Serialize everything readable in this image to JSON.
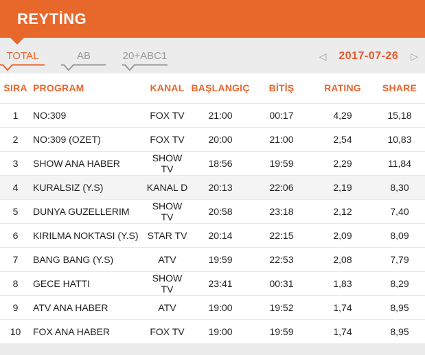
{
  "header": {
    "title": "REYTİNG"
  },
  "tabs": [
    {
      "label": "TOTAL",
      "active": true
    },
    {
      "label": "AB",
      "active": false
    },
    {
      "label": "20+ABC1",
      "active": false
    }
  ],
  "date_nav": {
    "prev_icon": "◁",
    "date": "2017-07-26",
    "next_icon": "▷"
  },
  "colors": {
    "accent_orange": "#E8682C",
    "inactive_gray": "#999999",
    "page_background": "#ECECEC",
    "row_highlight": "#F4F4F4"
  },
  "chart_data": {
    "type": "table",
    "title": "REYTİNG",
    "date": "2017-07-26",
    "columns": [
      "SIRA",
      "PROGRAM",
      "KANAL",
      "BAŞLANGIÇ",
      "BİTİŞ",
      "RATING",
      "SHARE"
    ],
    "rows": [
      [
        "1",
        "NO:309",
        "FOX TV",
        "21:00",
        "00:17",
        "4,29",
        "15,18"
      ],
      [
        "2",
        "NO:309 (OZET)",
        "FOX TV",
        "20:00",
        "21:00",
        "2,54",
        "10,83"
      ],
      [
        "3",
        "SHOW ANA HABER",
        "SHOW TV",
        "18:56",
        "19:59",
        "2,29",
        "11,84"
      ],
      [
        "4",
        "KURALSIZ (Y.S)",
        "KANAL D",
        "20:13",
        "22:06",
        "2,19",
        "8,30"
      ],
      [
        "5",
        "DUNYA GUZELLERIM",
        "SHOW TV",
        "20:58",
        "23:18",
        "2,12",
        "7,40"
      ],
      [
        "6",
        "KIRILMA NOKTASI (Y.S)",
        "STAR TV",
        "20:14",
        "22:15",
        "2,09",
        "8,09"
      ],
      [
        "7",
        "BANG BANG (Y.S)",
        "ATV",
        "19:59",
        "22:53",
        "2,08",
        "7,79"
      ],
      [
        "8",
        "GECE HATTI",
        "SHOW TV",
        "23:41",
        "00:31",
        "1,83",
        "8,29"
      ],
      [
        "9",
        "ATV ANA HABER",
        "ATV",
        "19:00",
        "19:52",
        "1,74",
        "8,95"
      ],
      [
        "10",
        "FOX ANA HABER",
        "FOX TV",
        "19:00",
        "19:59",
        "1,74",
        "8,95"
      ]
    ],
    "highlighted_row_sira": "4"
  }
}
